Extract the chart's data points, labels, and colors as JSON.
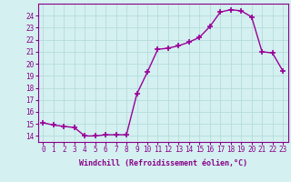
{
  "x": [
    0,
    1,
    2,
    3,
    4,
    5,
    6,
    7,
    8,
    9,
    10,
    11,
    12,
    13,
    14,
    15,
    16,
    17,
    18,
    19,
    20,
    21,
    22,
    23
  ],
  "y": [
    15.1,
    14.9,
    14.8,
    14.7,
    14.0,
    14.0,
    14.1,
    14.1,
    14.1,
    17.5,
    19.3,
    21.2,
    21.3,
    21.5,
    21.8,
    22.2,
    23.1,
    24.3,
    24.5,
    24.4,
    23.9,
    21.0,
    20.9,
    19.4
  ],
  "line_color": "#990099",
  "marker": "+",
  "markersize": 4,
  "markeredgewidth": 1.2,
  "linewidth": 1,
  "xlim": [
    -0.5,
    23.5
  ],
  "ylim": [
    13.5,
    25.0
  ],
  "yticks": [
    14,
    15,
    16,
    17,
    18,
    19,
    20,
    21,
    22,
    23,
    24
  ],
  "xtick_labels": [
    "0",
    "1",
    "2",
    "3",
    "4",
    "5",
    "6",
    "7",
    "8",
    "9",
    "10",
    "11",
    "12",
    "13",
    "14",
    "15",
    "16",
    "17",
    "18",
    "19",
    "20",
    "21",
    "22",
    "23"
  ],
  "xlabel": "Windchill (Refroidissement éolien,°C)",
  "bg_color": "#d4f0f0",
  "grid_color": "#b0d8d8",
  "tick_color": "#880088",
  "label_color": "#880088",
  "font_size_axis": 6.0,
  "font_size_ticks": 5.5
}
